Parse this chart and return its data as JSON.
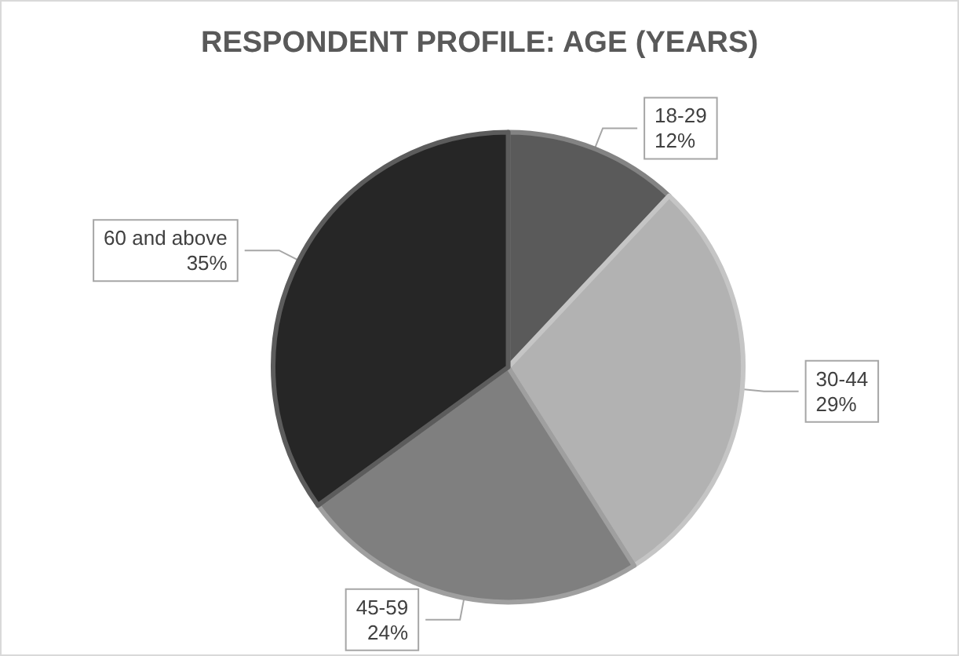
{
  "chart_data": {
    "type": "pie",
    "title": "RESPONDENT PROFILE: AGE (YEARS)",
    "categories": [
      "18-29",
      "30-44",
      "45-59",
      "60 and above"
    ],
    "values": [
      12,
      29,
      24,
      35
    ],
    "value_labels": [
      "12%",
      "29%",
      "24%",
      "35%"
    ],
    "colors": [
      "#5a5a5a",
      "#b2b2b2",
      "#7f7f7f",
      "#262626"
    ],
    "legend": false
  }
}
